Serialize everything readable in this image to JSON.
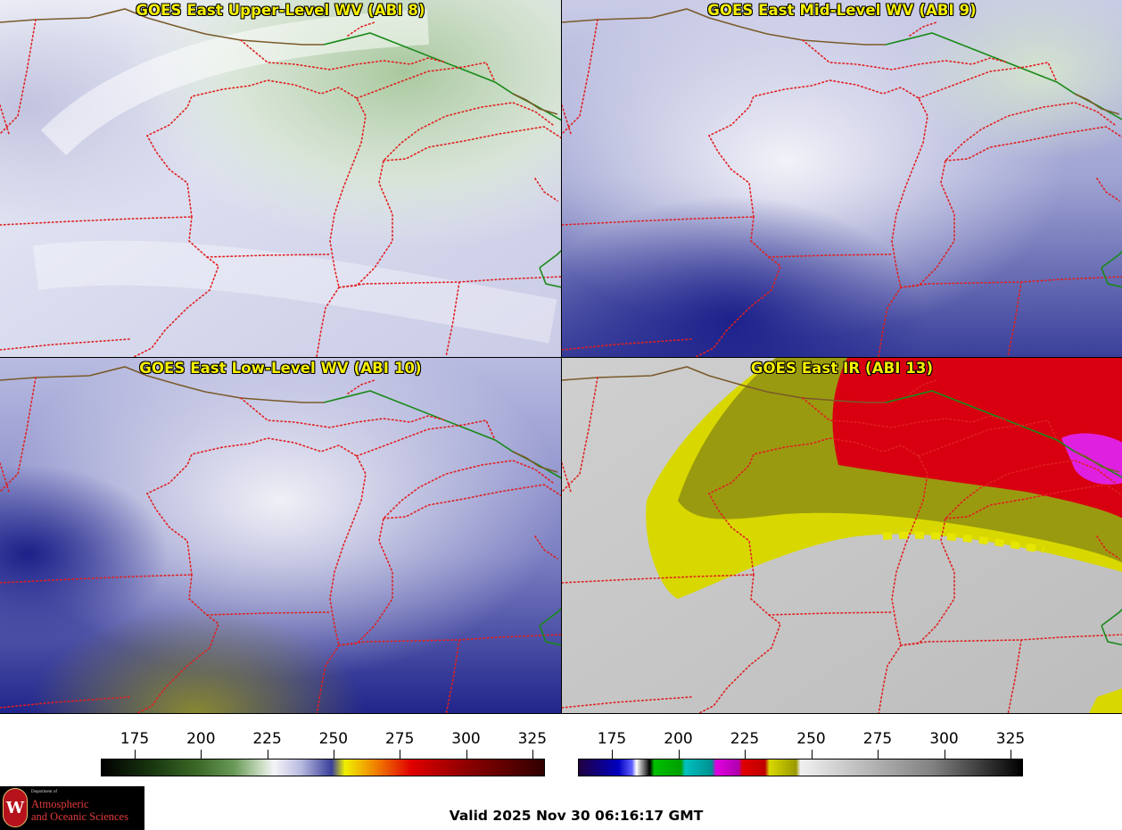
{
  "panels": {
    "upper": {
      "title": "GOES East Upper-Level WV (ABI 8)"
    },
    "mid": {
      "title": "GOES East Mid-Level WV (ABI 9)"
    },
    "low": {
      "title": "GOES East Low-Level WV (ABI 10)"
    },
    "ir": {
      "title": "GOES East IR (ABI 13)"
    }
  },
  "colorbars": {
    "wv": {
      "ticks": [
        "175",
        "200",
        "225",
        "250",
        "275",
        "300",
        "325"
      ]
    },
    "ir": {
      "ticks": [
        "175",
        "200",
        "225",
        "250",
        "275",
        "300",
        "325"
      ]
    }
  },
  "logo": {
    "dept": "Department of",
    "line1": "Atmospheric",
    "line2": "and Oceanic Sciences",
    "seal": "W"
  },
  "footer": {
    "valid_text": "Valid 2025 Nov 30 06:16:17 GMT"
  },
  "colors": {
    "border_line": "#e02020",
    "coast_line": "#7a5a2a",
    "intl_border": "#1a8a1a"
  }
}
